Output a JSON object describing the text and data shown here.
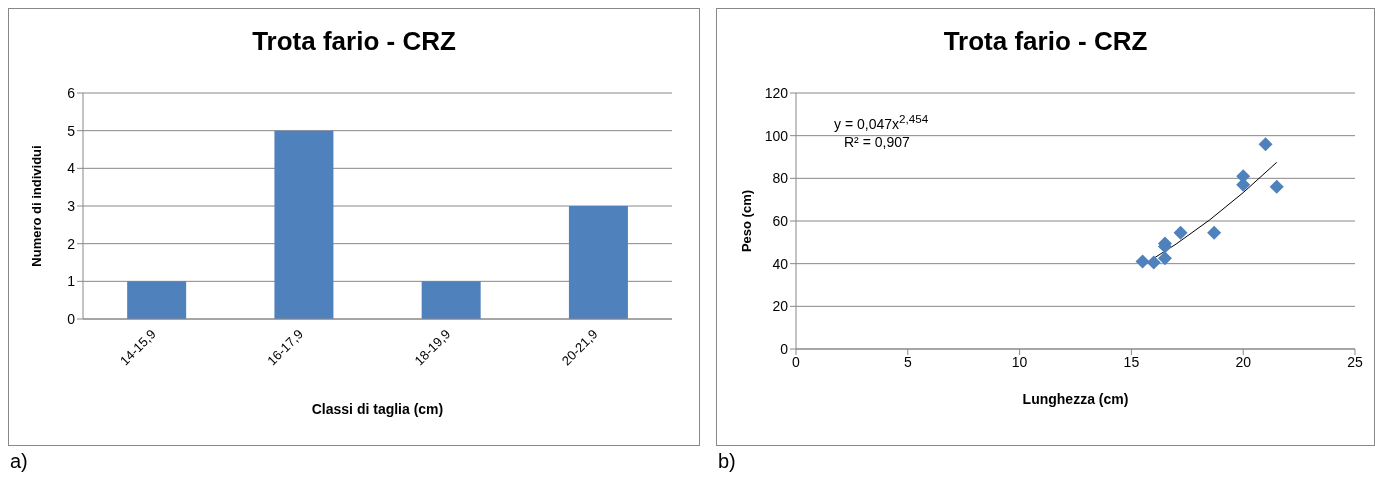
{
  "chart_data": [
    {
      "type": "bar",
      "title": "Trota fario - CRZ",
      "xlabel": "Classi di taglia (cm)",
      "ylabel": "Numero di individui",
      "categories": [
        "14-15,9",
        "16-17,9",
        "18-19,9",
        "20-21,9"
      ],
      "values": [
        1,
        5,
        1,
        3
      ],
      "color": "#4f81bd",
      "ylim": [
        0,
        6
      ],
      "yticks": [
        0,
        1,
        2,
        3,
        4,
        5,
        6
      ],
      "grid": "y",
      "annotations": [
        "a)"
      ]
    },
    {
      "type": "scatter",
      "title": "Trota fario - CRZ",
      "xlabel": "Lunghezza (cm)",
      "ylabel": "Peso (cm)",
      "xlim": [
        0,
        25
      ],
      "xticks": [
        0,
        5,
        10,
        15,
        20,
        25
      ],
      "ylim": [
        0,
        120
      ],
      "yticks": [
        0,
        20,
        40,
        60,
        80,
        100,
        120
      ],
      "grid": "y",
      "series": [
        {
          "type": "scatter",
          "marker": "diamond",
          "color": "#4f81bd",
          "x": [
            15.5,
            16.0,
            16.5,
            16.5,
            16.5,
            17.2,
            18.7,
            20.0,
            20.0,
            21.0,
            21.5
          ],
          "values": [
            41,
            40.5,
            42.5,
            48,
            49.5,
            54.5,
            54.5,
            77,
            81,
            96,
            76
          ]
        },
        {
          "type": "line",
          "marker": "none",
          "color": "#000000",
          "x": [
            15.5,
            17,
            18.5,
            20,
            21.5
          ],
          "values": [
            39.2,
            49.2,
            60.5,
            73.3,
            87.5
          ]
        }
      ],
      "annotations": [
        "y = 0,047x$^{2,454}$",
        "R² = 0,907",
        "b)"
      ]
    }
  ]
}
